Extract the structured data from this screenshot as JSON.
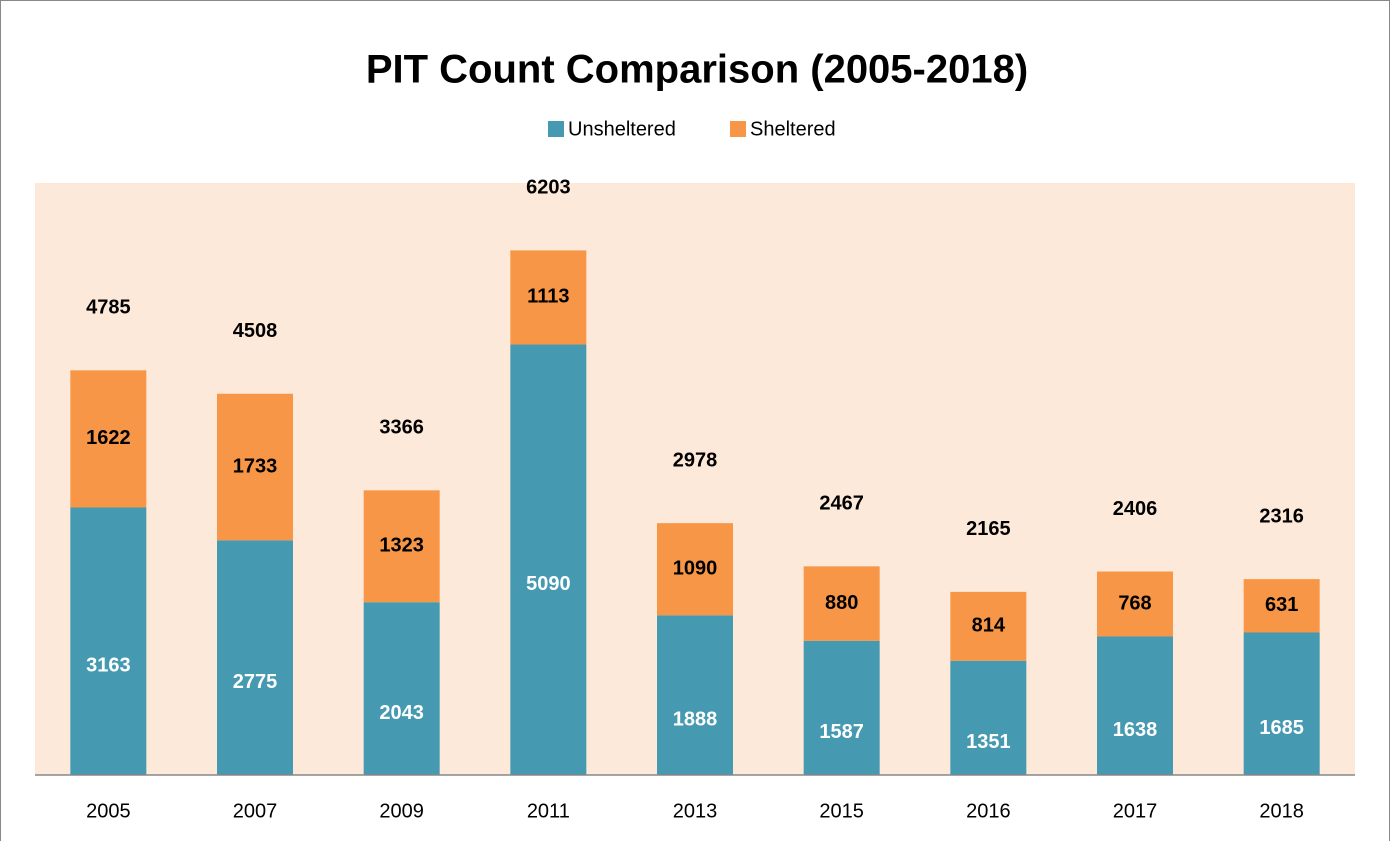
{
  "chart_data": {
    "type": "stacked_bar",
    "title": "PIT Count Comparison (2005-2018)",
    "categories": [
      "2005",
      "2007",
      "2009",
      "2011",
      "2013",
      "2015",
      "2016",
      "2017",
      "2018"
    ],
    "series": [
      {
        "name": "Unsheltered",
        "color": "#4599b0",
        "values": [
          3163,
          2775,
          2043,
          5090,
          1888,
          1587,
          1351,
          1638,
          1685
        ]
      },
      {
        "name": "Sheltered",
        "color": "#f79646",
        "values": [
          1622,
          1733,
          1323,
          1113,
          1090,
          880,
          814,
          768,
          631
        ]
      }
    ],
    "totals": [
      4785,
      4508,
      3366,
      6203,
      2978,
      2467,
      2165,
      2406,
      2316
    ],
    "ylim": [
      0,
      7000
    ],
    "legend": "top",
    "plot_background": "#fde9d9"
  }
}
